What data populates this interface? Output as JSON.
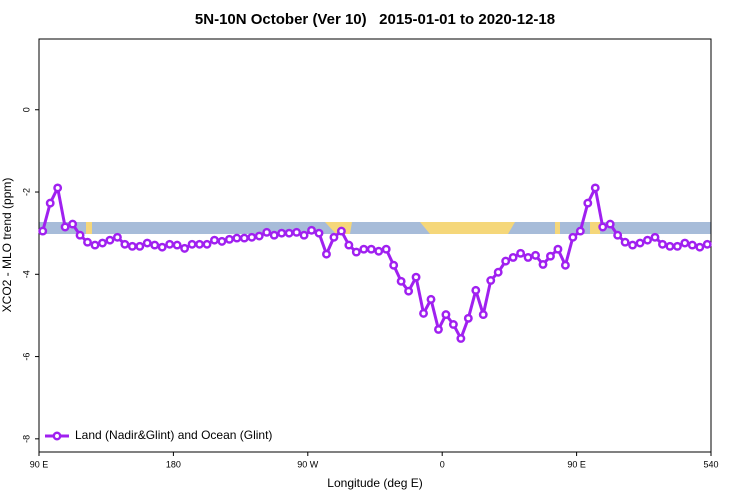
{
  "chart_data": {
    "type": "line",
    "title": "5N-10N October (Ver 10)   2015-01-01 to 2020-12-18",
    "xlabel": "Longitude (deg E)",
    "ylabel": "XCO2 - MLO trend (ppm)",
    "xlim": [
      90,
      540
    ],
    "ylim": [
      -8.32,
      1.72
    ],
    "xticks": [
      {
        "value": 90,
        "label": "90 E"
      },
      180,
      {
        "value": 270,
        "label": "90 W"
      },
      {
        "value": 360,
        "label": "0"
      },
      {
        "value": 450,
        "label": "90 E"
      },
      540
    ],
    "yticks": [
      -8,
      -6,
      -4,
      -2,
      0
    ],
    "legend": "bottom-left",
    "x": [
      92.5,
      97.5,
      102.5,
      107.5,
      112.5,
      117.5,
      122.5,
      127.5,
      132.5,
      137.5,
      142.5,
      147.5,
      152.5,
      157.5,
      162.5,
      167.5,
      172.5,
      177.5,
      182.5,
      187.5,
      192.5,
      197.5,
      202.5,
      207.5,
      212.5,
      217.5,
      222.5,
      227.5,
      232.5,
      237.5,
      242.5,
      247.5,
      252.5,
      257.5,
      262.5,
      267.5,
      272.5,
      277.5,
      282.5,
      287.5,
      292.5,
      297.5,
      302.5,
      307.5,
      312.5,
      317.5,
      322.5,
      327.5,
      332.5,
      337.5,
      342.5,
      347.5,
      352.5,
      357.5,
      362.5,
      367.5,
      372.5,
      377.5,
      382.5,
      387.5,
      392.5,
      397.5,
      402.5,
      407.5,
      412.5,
      417.5,
      422.5,
      427.5,
      432.5,
      437.5,
      442.5,
      447.5,
      452.5,
      457.5,
      462.5,
      467.5,
      472.5,
      477.5,
      482.5,
      487.5,
      492.5,
      497.5,
      502.5,
      507.5,
      512.5,
      517.5,
      522.5,
      527.5,
      532.5,
      537.5
    ],
    "series": [
      {
        "name": "Land (Nadir&Glint) and Ocean (Glint)",
        "color": "#a020f0",
        "values": [
          -2.95,
          -2.27,
          -1.9,
          -2.85,
          -2.78,
          -3.05,
          -3.22,
          -3.29,
          -3.24,
          -3.17,
          -3.1,
          -3.27,
          -3.32,
          -3.32,
          -3.24,
          -3.29,
          -3.34,
          -3.27,
          -3.29,
          -3.37,
          -3.27,
          -3.27,
          -3.27,
          -3.17,
          -3.2,
          -3.15,
          -3.12,
          -3.12,
          -3.1,
          -3.07,
          -2.98,
          -3.05,
          -3.0,
          -3.0,
          -2.98,
          -3.05,
          -2.93,
          -3.0,
          -3.51,
          -3.1,
          -2.95,
          -3.29,
          -3.46,
          -3.39,
          -3.39,
          -3.44,
          -3.39,
          -3.78,
          -4.17,
          -4.41,
          -4.07,
          -4.95,
          -4.61,
          -5.34,
          -4.98,
          -5.22,
          -5.56,
          -5.07,
          -4.39,
          -4.98,
          -4.15,
          -3.95,
          -3.68,
          -3.59,
          -3.49,
          -3.59,
          -3.54,
          -3.76,
          -3.56,
          -3.39,
          -3.78,
          -3.1,
          -2.95,
          -2.27,
          -1.9,
          -2.85,
          -2.78,
          -3.05,
          -3.22,
          -3.29,
          -3.24,
          -3.17,
          -3.1,
          -3.27,
          -3.32,
          -3.32,
          -3.24,
          -3.29,
          -3.34,
          -3.27
        ]
      }
    ]
  }
}
